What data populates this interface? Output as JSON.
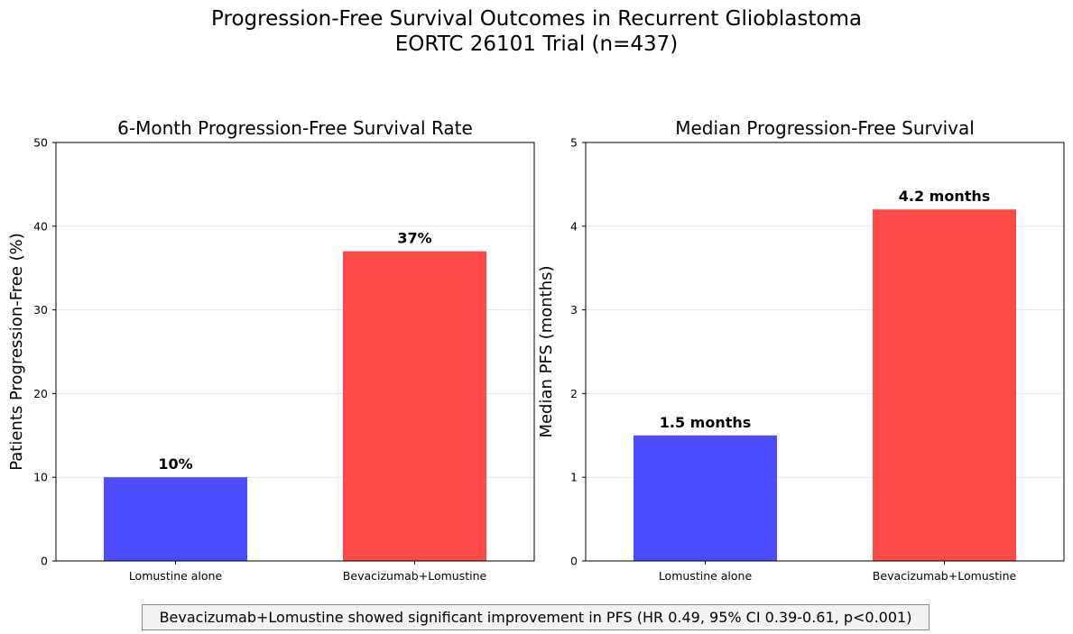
{
  "suptitle_line1": "Progression-Free Survival Outcomes in Recurrent Glioblastoma",
  "suptitle_line2": "EORTC 26101 Trial (n=437)",
  "footnote": "Bevacizumab+Lomustine showed significant improvement in PFS (HR 0.49, 95% CI 0.39-0.61, p<0.001)",
  "colors": {
    "lomustine": "#4d4dff",
    "combo": "#ff4a4a",
    "grid": "#e6e6e6"
  },
  "chart_data": [
    {
      "type": "bar",
      "title": "6-Month Progression-Free Survival Rate",
      "xlabel": "",
      "ylabel": "Patients Progression-Free (%)",
      "categories": [
        "Lomustine alone",
        "Bevacizumab+Lomustine"
      ],
      "values": [
        10,
        37
      ],
      "data_labels": [
        "10%",
        "37%"
      ],
      "ylim": [
        0,
        50
      ],
      "yticks": [
        0,
        10,
        20,
        30,
        40,
        50
      ],
      "grid": true
    },
    {
      "type": "bar",
      "title": "Median Progression-Free Survival",
      "xlabel": "",
      "ylabel": "Median PFS (months)",
      "categories": [
        "Lomustine alone",
        "Bevacizumab+Lomustine"
      ],
      "values": [
        1.5,
        4.2
      ],
      "data_labels": [
        "1.5 months",
        "4.2 months"
      ],
      "ylim": [
        0,
        5
      ],
      "yticks": [
        0,
        1,
        2,
        3,
        4,
        5
      ],
      "grid": true
    }
  ]
}
